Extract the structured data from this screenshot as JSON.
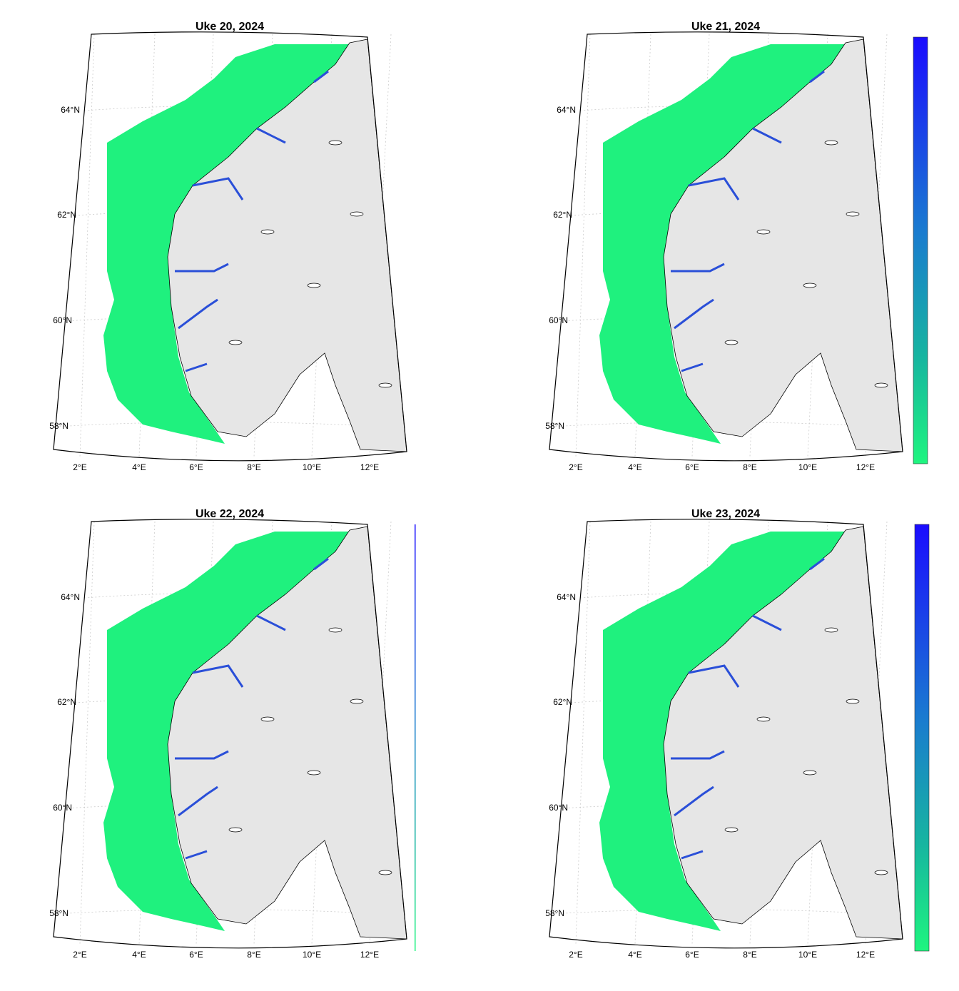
{
  "panels": [
    {
      "title": "Uke 20, 2024",
      "lat_labels": [
        "64°N",
        "62°N",
        "60°N",
        "58°N"
      ],
      "lon_labels": [
        "2°E",
        "4°E",
        "6°E",
        "8°E",
        "10°E",
        "12°E"
      ]
    },
    {
      "title": "Uke 21, 2024",
      "lat_labels": [
        "64°N",
        "62°N",
        "60°N",
        "58°N"
      ],
      "lon_labels": [
        "2°E",
        "4°E",
        "6°E",
        "8°E",
        "10°E",
        "12°E"
      ]
    },
    {
      "title": "Uke 22, 2024",
      "lat_labels": [
        "64°N",
        "62°N",
        "60°N",
        "58°N"
      ],
      "lon_labels": [
        "2°E",
        "4°E",
        "6°E",
        "8°E",
        "10°E",
        "12°E"
      ]
    },
    {
      "title": "Uke 23, 2024",
      "lat_labels": [
        "64°N",
        "62°N",
        "60°N",
        "58°N"
      ],
      "lon_labels": [
        "2°E",
        "4°E",
        "6°E",
        "8°E",
        "10°E",
        "12°E"
      ]
    }
  ]
}
